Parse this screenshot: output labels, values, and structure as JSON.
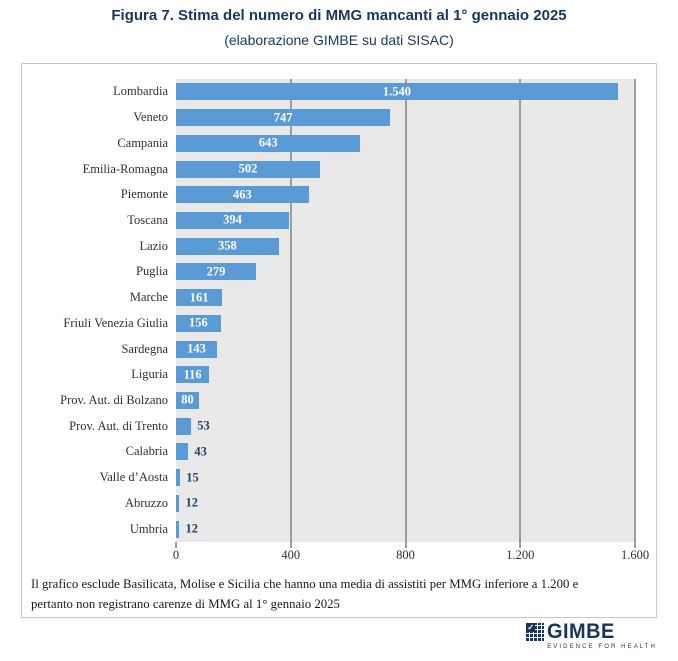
{
  "figure": {
    "title": "Figura 7. Stima del numero di MMG mancanti al 1° gennaio 2025",
    "subtitle": "(elaborazione GIMBE su dati SISAC)"
  },
  "chart_data": {
    "type": "bar",
    "orientation": "horizontal",
    "categories": [
      "Lombardia",
      "Veneto",
      "Campania",
      "Emilia-Romagna",
      "Piemonte",
      "Toscana",
      "Lazio",
      "Puglia",
      "Marche",
      "Friuli Venezia Giulia",
      "Sardegna",
      "Liguria",
      "Prov. Aut. di Bolzano",
      "Prov. Aut. di Trento",
      "Calabria",
      "Valle d’Aosta",
      "Abruzzo",
      "Umbria"
    ],
    "values": [
      1540,
      747,
      643,
      502,
      463,
      394,
      358,
      279,
      161,
      156,
      143,
      116,
      80,
      53,
      43,
      15,
      12,
      12
    ],
    "value_labels": [
      "1.540",
      "747",
      "643",
      "502",
      "463",
      "394",
      "358",
      "279",
      "161",
      "156",
      "143",
      "116",
      "80",
      "53",
      "43",
      "15",
      "12",
      "12"
    ],
    "title": "Stima del numero di MMG mancanti al 1° gennaio 2025",
    "xlabel": "",
    "ylabel": "",
    "xlim": [
      0,
      1600
    ],
    "x_ticks": [
      "0",
      "400",
      "800",
      "1.200",
      "1.600"
    ],
    "x_tick_values": [
      0,
      400,
      800,
      1200,
      1600
    ],
    "grid": true,
    "legend": false,
    "bar_color": "#5B9BD5",
    "plot_background": "#E9E9E9",
    "gridline_color": "#9D9D9D",
    "inside_label_color": "#FFFFFF",
    "outside_label_color": "#1F4268",
    "label_inside_min_value": 70
  },
  "footnote": {
    "line1": "Il grafico esclude Basilicata, Molise e Sicilia che hanno una media di assistiti per MMG inferiore a 1.200 e",
    "line2": "pertanto non registrano carenze di MMG al 1° gennaio 2025"
  },
  "logo": {
    "name": "GIMBE",
    "tagline": "EVIDENCE FOR HEALTH",
    "check_glyph": "✓",
    "color": "#17365D"
  },
  "colors": {
    "title_text": "#17375E",
    "chart_text": "#303030",
    "box_border": "#C9C9C9"
  }
}
